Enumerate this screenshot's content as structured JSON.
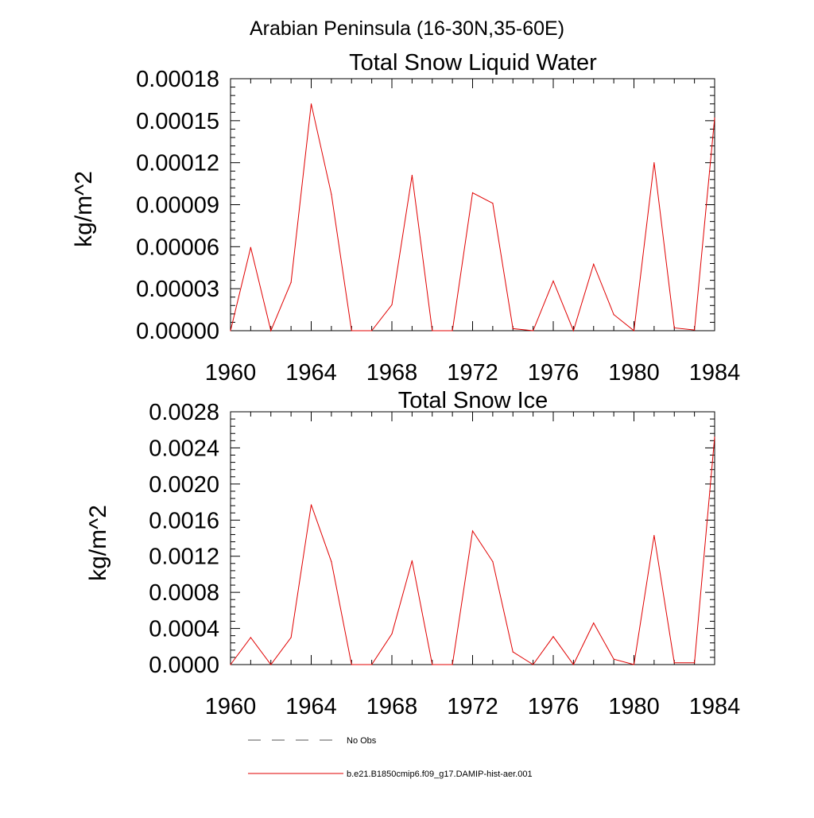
{
  "region_title": "Arabian Peninsula (16-30N,35-60E)",
  "chart_data": [
    {
      "type": "line",
      "title": "Total Snow Liquid Water",
      "ylabel": "kg/m^2",
      "xlabel": "",
      "xlim": [
        1960,
        1984
      ],
      "ylim": [
        0,
        0.00018
      ],
      "x_ticks": [
        "1960",
        "1964",
        "1968",
        "1972",
        "1976",
        "1980",
        "1984"
      ],
      "y_ticks": [
        "0.00000",
        "0.00003",
        "0.00006",
        "0.00009",
        "0.00012",
        "0.00015",
        "0.00018"
      ],
      "x": [
        1960,
        1961,
        1962,
        1963,
        1964,
        1965,
        1966,
        1967,
        1968,
        1969,
        1970,
        1971,
        1972,
        1973,
        1974,
        1975,
        1976,
        1977,
        1978,
        1979,
        1980,
        1981,
        1982,
        1983,
        1984
      ],
      "series": [
        {
          "color": "#e00000",
          "values": [
            0.0,
            5.95e-05,
            0.0,
            3.45e-05,
            0.000162,
            9.75e-05,
            0.0,
            0.0,
            1.85e-05,
            0.000111,
            0.0,
            0.0,
            9.85e-05,
            9.1e-05,
            1.5e-06,
            0.0,
            3.55e-05,
            0.0,
            4.75e-05,
            1.15e-05,
            0.0,
            0.00012,
            2e-06,
            5e-07,
            0.000152
          ]
        }
      ]
    },
    {
      "type": "line",
      "title": "Total Snow Ice",
      "ylabel": "kg/m^2",
      "xlabel": "",
      "xlim": [
        1960,
        1984
      ],
      "ylim": [
        0,
        0.0028
      ],
      "x_ticks": [
        "1960",
        "1964",
        "1968",
        "1972",
        "1976",
        "1980",
        "1984"
      ],
      "y_ticks": [
        "0.0000",
        "0.0004",
        "0.0008",
        "0.0012",
        "0.0016",
        "0.0020",
        "0.0024",
        "0.0028"
      ],
      "x": [
        1960,
        1961,
        1962,
        1963,
        1964,
        1965,
        1966,
        1967,
        1968,
        1969,
        1970,
        1971,
        1972,
        1973,
        1974,
        1975,
        1976,
        1977,
        1978,
        1979,
        1980,
        1981,
        1982,
        1983,
        1984
      ],
      "series": [
        {
          "color": "#e00000",
          "values": [
            0.0,
            0.0003,
            0.0,
            0.0003,
            0.00177,
            0.00114,
            0.0,
            0.0,
            0.00034,
            0.00115,
            0.0,
            0.0,
            0.00148,
            0.00114,
            0.00014,
            0.0,
            0.00031,
            0.0,
            0.00046,
            6e-05,
            0.0,
            0.00143,
            2e-05,
            2e-05,
            0.00252
          ]
        }
      ]
    }
  ],
  "legend": {
    "items": [
      {
        "label": "No Obs",
        "color": "#555555",
        "dash": true
      },
      {
        "label": "b.e21.B1850cmip6.f09_g17.DAMIP-hist-aer.001",
        "color": "#e00000",
        "dash": false
      }
    ]
  }
}
